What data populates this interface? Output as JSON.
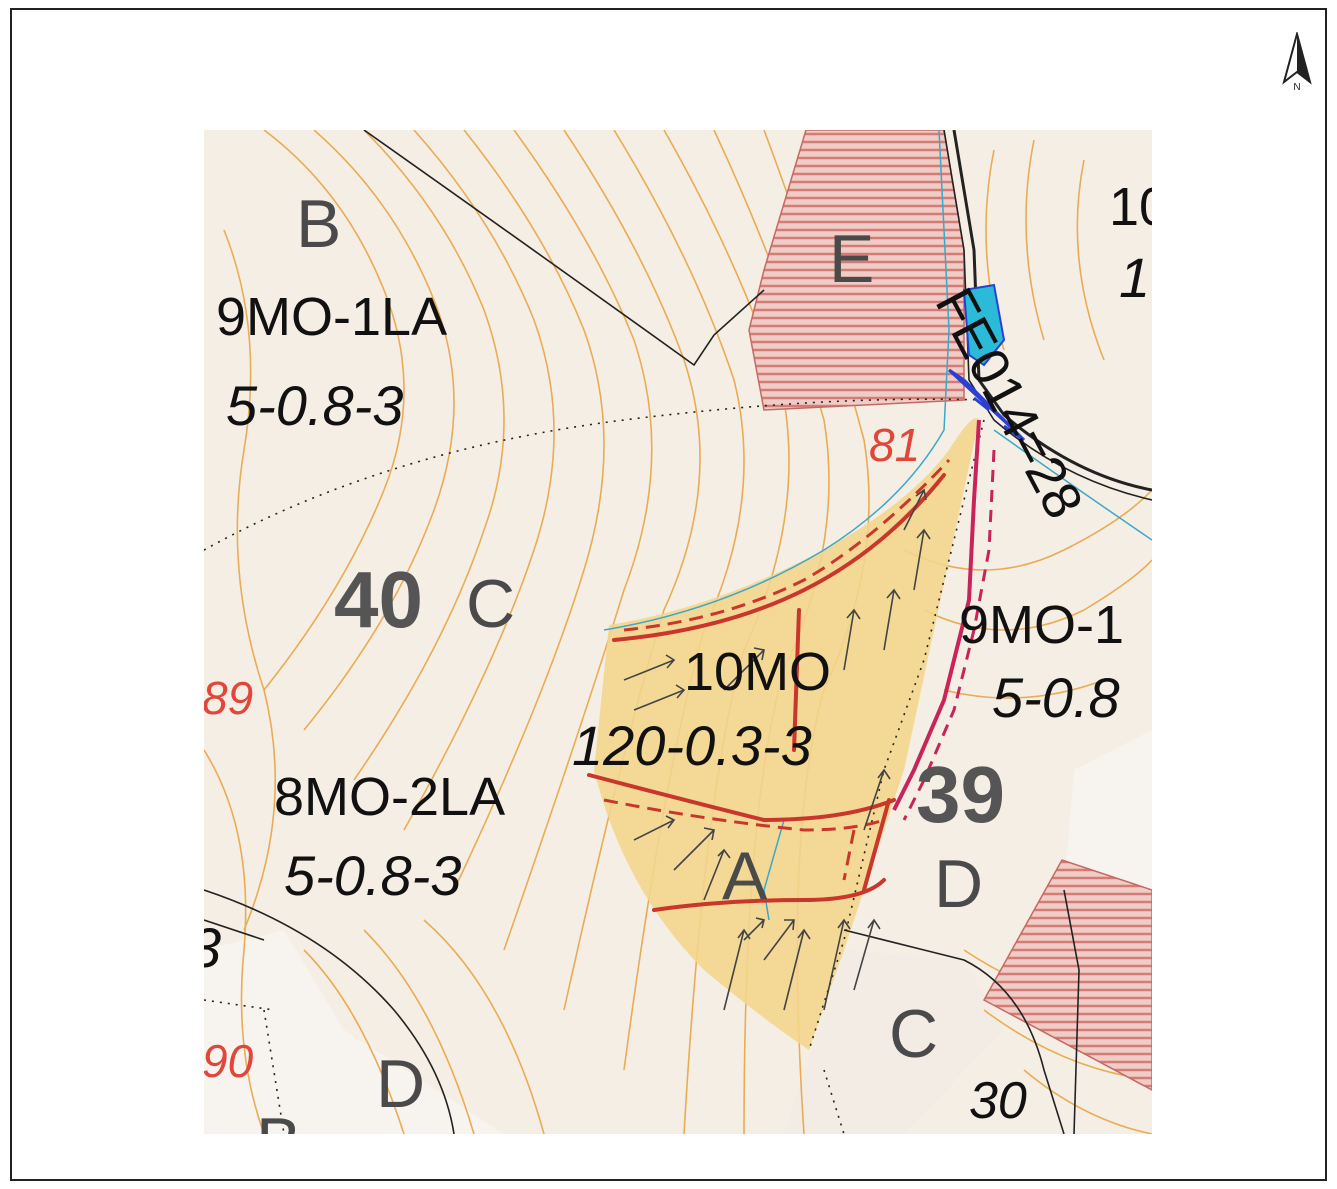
{
  "north_arrow": {
    "icon": "north-arrow-icon",
    "label": "N"
  },
  "map": {
    "zone_letters": {
      "b_top": "B",
      "e": "E",
      "c_mid": "C",
      "a": "A",
      "d_right": "D",
      "c_bottom": "C",
      "d_bottom": "D"
    },
    "stand_codes": {
      "nw_species": "9MO-1LA",
      "nw_params": "5-0.8-3",
      "sw_species": "8MO-2LA",
      "sw_params": "5-0.8-3",
      "center_species": "10MO",
      "center_params": "120-0.3-3",
      "east_species": "9MO-1",
      "east_params": "5-0.8"
    },
    "compartments": {
      "left": "40",
      "right": "39"
    },
    "red_numbers": {
      "top": "81",
      "left_mid": "89",
      "left_bottom": "90"
    },
    "road_label": "FE014=28",
    "edge_fragments": {
      "top_right_1": "10",
      "top_right_2": "1",
      "left_edge": "3",
      "bottom_left": "B",
      "bottom_number": "30"
    },
    "colors": {
      "background": "#f5eee4",
      "contour": "#e8a545",
      "hatch": "#d57a74",
      "parcel_fill": "#f3d58d",
      "red_line": "#c9362b",
      "magenta_line": "#c8245a",
      "blue_marker": "#2a40d0"
    }
  }
}
